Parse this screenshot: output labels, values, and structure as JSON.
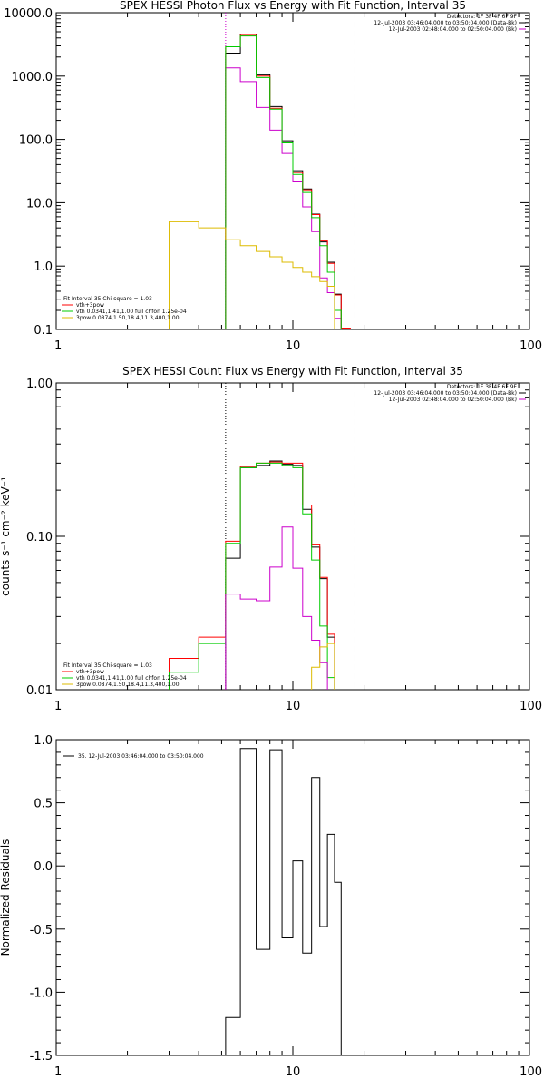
{
  "chart_data": [
    {
      "type": "line",
      "title": "SPEX HESSI Photon Flux vs Energy with Fit Function, Interval 35",
      "ylabel": "",
      "xscale": "log",
      "yscale": "log",
      "xlim": [
        1,
        100
      ],
      "ylim": [
        0.1,
        10000
      ],
      "x_ticks": [
        "1",
        "10",
        "100"
      ],
      "y_ticks": [
        "0.1",
        "1.0",
        "10.0",
        "100.0",
        "1000.0",
        "10000.0"
      ],
      "vlines": [
        {
          "x": 5.2,
          "style": "dotted",
          "color": "#cc00cc"
        },
        {
          "x": 18.3,
          "style": "dashed",
          "color": "#000000"
        }
      ],
      "header_lines": [
        "Detectors: 1F 3F 4F 6F 9F",
        "12-Jul-2003 03:46:04.000 to 03:50:04.000 (Data-Bk)",
        "12-Jul-2003 02:48:04.000 to 02:50:04.000 (Bk)"
      ],
      "legend_lines": [
        "Fit Interval 35   Chi-square = 1.03",
        "vth+3pow",
        "vth 0.0341,1.41,1.00  full chfon 1.25e-04",
        "3pow 0.0874,1.50,18.4,11.3,400,1.00"
      ],
      "edges": [
        3.0,
        4.0,
        5.2,
        6.0,
        7.0,
        8.0,
        9.0,
        10.0,
        11.0,
        12.0,
        13.0,
        14.0,
        15.0,
        16.0,
        17.5,
        19.0,
        20.5
      ],
      "series": [
        {
          "name": "Data-Bk",
          "color": "#000000",
          "values": [
            null,
            null,
            2300,
            4600,
            1050,
            330,
            95,
            32,
            16.5,
            6.6,
            2.4,
            1.15,
            0.36,
            null,
            null,
            null
          ]
        },
        {
          "name": "Bk",
          "color": "#cc00cc",
          "values": [
            null,
            null,
            1350,
            820,
            320,
            140,
            60,
            22,
            8.6,
            3.5,
            0.65,
            0.38,
            0.15,
            null,
            null,
            null
          ]
        },
        {
          "name": "vth+3pow",
          "color": "#ff0000",
          "values": [
            null,
            null,
            2900,
            4400,
            1000,
            310,
            90,
            30,
            16,
            6.5,
            2.5,
            1.1,
            0.35,
            0.105,
            null,
            null
          ]
        },
        {
          "name": "vth",
          "color": "#00cc00",
          "values": [
            null,
            null,
            2900,
            4300,
            950,
            300,
            88,
            28,
            14.5,
            5.8,
            2.1,
            0.8,
            0.2,
            null,
            null,
            null
          ]
        },
        {
          "name": "3pow",
          "color": "#ddbb00",
          "values": [
            5.0,
            4.0,
            2.6,
            2.1,
            1.7,
            1.4,
            1.15,
            0.95,
            0.8,
            0.68,
            0.57,
            0.48,
            0.1,
            null,
            null,
            null
          ]
        }
      ]
    },
    {
      "type": "line",
      "title": "SPEX HESSI Count Flux vs Energy with Fit Function, Interval 35",
      "ylabel": "counts s⁻¹ cm⁻² keV⁻¹",
      "xscale": "log",
      "yscale": "log",
      "xlim": [
        1,
        100
      ],
      "ylim": [
        0.01,
        1
      ],
      "x_ticks": [
        "1",
        "10",
        "100"
      ],
      "y_ticks": [
        "0.01",
        "0.10",
        "1.00"
      ],
      "vlines": [
        {
          "x": 5.2,
          "style": "dotted",
          "color": "#000000"
        },
        {
          "x": 18.3,
          "style": "dashed",
          "color": "#000000"
        }
      ],
      "header_lines": [
        "Detectors: 1F 3F 4F 6F 9F",
        "12-Jul-2003 03:46:04.000 to 03:50:04.000 (Data-Bk)",
        "12-Jul-2003 02:48:04.000 to 02:50:04.000 (Bk)"
      ],
      "legend_lines": [
        "Fit Interval 35   Chi-square = 1.03",
        "vth+3pow",
        "vth 0.0341,1.41,1.00  full chfon 1.25e-04",
        "3pow 0.0874,1.50,18.4,11.3,400,1.00"
      ],
      "edges": [
        3.0,
        4.0,
        5.2,
        6.0,
        7.0,
        8.0,
        9.0,
        10.0,
        11.0,
        12.0,
        13.0,
        14.0,
        15.0,
        16.0,
        17.5,
        19.0,
        20.5
      ],
      "series": [
        {
          "name": "Data-Bk",
          "color": "#000000",
          "values": [
            null,
            null,
            0.072,
            0.28,
            0.29,
            0.31,
            0.295,
            0.29,
            0.15,
            0.085,
            0.053,
            0.022,
            null,
            null,
            null,
            null
          ]
        },
        {
          "name": "vth+3pow",
          "color": "#ff0000",
          "values": [
            0.016,
            0.022,
            0.093,
            0.285,
            0.3,
            0.305,
            0.3,
            0.3,
            0.16,
            0.088,
            0.054,
            0.023,
            null,
            null,
            null,
            null
          ]
        },
        {
          "name": "vth",
          "color": "#00cc00",
          "values": [
            0.013,
            0.02,
            0.09,
            0.28,
            0.3,
            0.3,
            0.29,
            0.28,
            0.14,
            0.07,
            0.026,
            0.012,
            null,
            null,
            null,
            null
          ]
        },
        {
          "name": "Bk",
          "color": "#cc00cc",
          "values": [
            null,
            null,
            0.042,
            0.039,
            0.038,
            0.063,
            0.115,
            0.062,
            0.03,
            0.021,
            0.015,
            null,
            null,
            null,
            null,
            null
          ]
        },
        {
          "name": "3pow",
          "color": "#ddbb00",
          "values": [
            null,
            null,
            null,
            null,
            null,
            null,
            null,
            null,
            null,
            0.014,
            0.019,
            0.02,
            null,
            null,
            null,
            null
          ]
        }
      ]
    },
    {
      "type": "line",
      "title": "",
      "ylabel": "Normalized Residuals",
      "xscale": "log",
      "yscale": "linear",
      "xlim": [
        1,
        100
      ],
      "ylim": [
        -1.5,
        1.0
      ],
      "x_ticks": [
        "1",
        "10",
        "100"
      ],
      "y_ticks": [
        "-1.5",
        "-1.0",
        "-0.5",
        "0.0",
        "0.5",
        "1.0"
      ],
      "legend_lines": [
        "35. 12-Jul-2003 03:46:04.000 to 03:50:04.000"
      ],
      "edges": [
        5.2,
        6.0,
        7.0,
        8.0,
        9.0,
        10.0,
        11.0,
        12.0,
        13.0,
        14.0,
        15.0,
        16.0,
        17.5,
        19.0
      ],
      "series": [
        {
          "name": "",
          "color": "#000000",
          "values": [
            -1.2,
            0.93,
            -0.66,
            0.92,
            -0.57,
            0.04,
            -0.69,
            0.7,
            -0.48,
            0.25,
            -0.13,
            -1.6,
            -1.6
          ]
        }
      ]
    }
  ]
}
